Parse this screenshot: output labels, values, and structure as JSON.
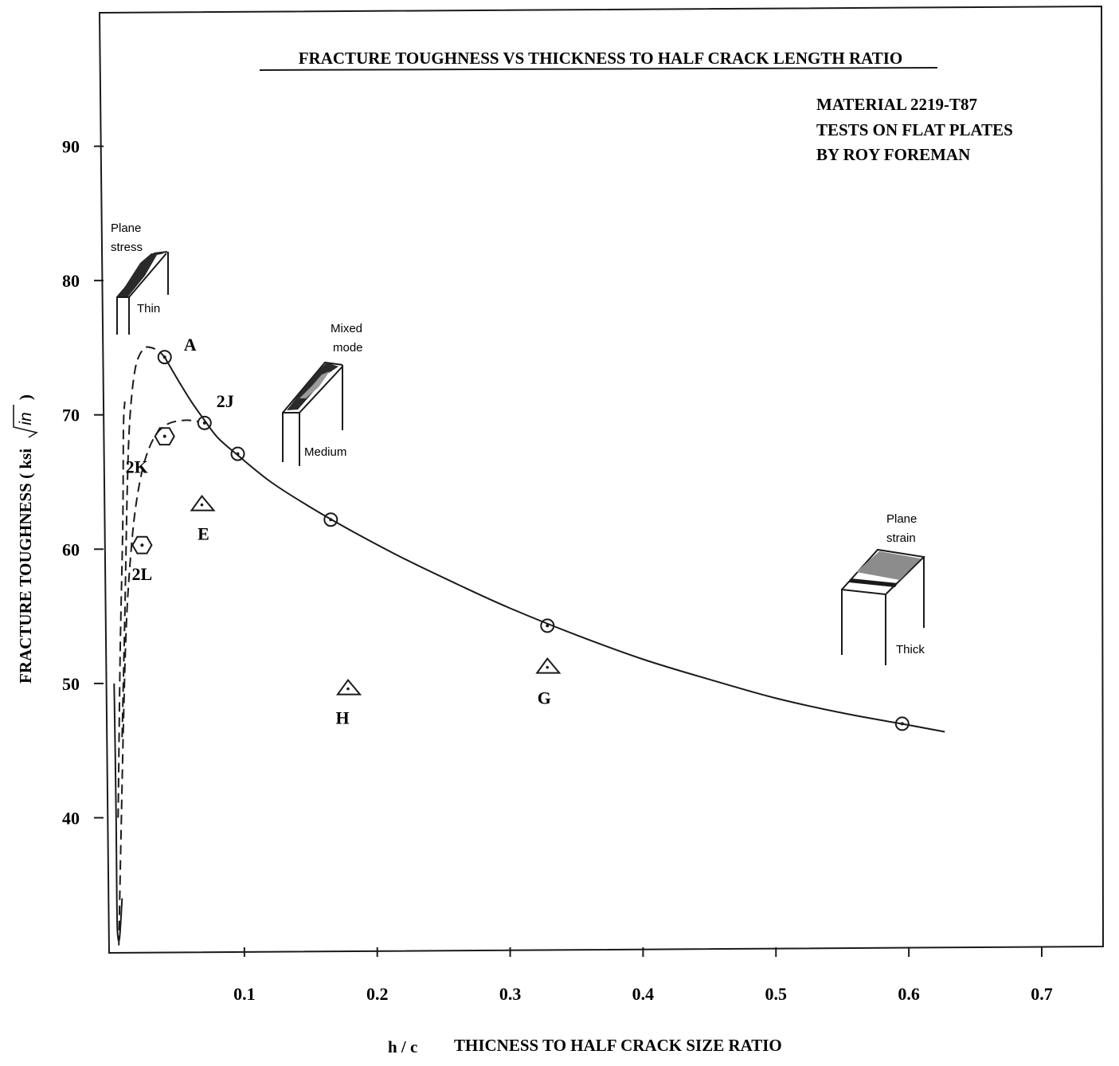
{
  "chart_data": {
    "type": "scatter",
    "title": "FRACTURE TOUGHNESS VS THICKNESS TO HALF CRACK LENGTH RATIO",
    "notes": [
      "MATERIAL  2219-T87",
      "TESTS ON FLAT PLATES",
      "BY ROY FOREMAN"
    ],
    "xlabel_prefix": "h / c",
    "xlabel": "THICNESS TO HALF CRACK SIZE RATIO",
    "ylabel": "FRACTURE TOUGHNESS ( ksi",
    "ylabel_root": "in",
    "ylabel_close": ")",
    "xlim": [
      0,
      0.7
    ],
    "ylim": [
      30,
      100
    ],
    "x_ticks": [
      0.1,
      0.2,
      0.3,
      0.4,
      0.5,
      0.6,
      0.7
    ],
    "x_tick_labels": [
      "0.1",
      "0.2",
      "0.3",
      "0.4",
      "0.5",
      "0.6",
      "0.7"
    ],
    "y_ticks": [
      40,
      50,
      60,
      70,
      80,
      90
    ],
    "y_tick_labels": [
      "40",
      "50",
      "60",
      "70",
      "80",
      "90"
    ],
    "grid": false,
    "series": [
      {
        "marker": "circle",
        "points": [
          {
            "x": 0.04,
            "y": 74.3,
            "label": "A"
          },
          {
            "x": 0.07,
            "y": 69.4,
            "label": "2J"
          },
          {
            "x": 0.095,
            "y": 67.1,
            "label": ""
          },
          {
            "x": 0.165,
            "y": 62.2,
            "label": ""
          },
          {
            "x": 0.328,
            "y": 54.3,
            "label": ""
          },
          {
            "x": 0.595,
            "y": 47.0,
            "label": ""
          }
        ]
      },
      {
        "marker": "hexagon",
        "points": [
          {
            "x": 0.04,
            "y": 68.4,
            "label": "2K"
          },
          {
            "x": 0.023,
            "y": 60.3,
            "label": "2L"
          }
        ]
      },
      {
        "marker": "triangle",
        "points": [
          {
            "x": 0.068,
            "y": 63.3,
            "label": "E"
          },
          {
            "x": 0.178,
            "y": 49.6,
            "label": "H"
          },
          {
            "x": 0.328,
            "y": 51.2,
            "label": "G"
          }
        ]
      }
    ],
    "curves": [
      {
        "style": "solid",
        "points": [
          [
            0.04,
            74.3
          ],
          [
            0.05,
            72.6
          ],
          [
            0.06,
            71.0
          ],
          [
            0.07,
            69.6
          ],
          [
            0.08,
            68.3
          ],
          [
            0.095,
            67.0
          ],
          [
            0.12,
            65.0
          ],
          [
            0.15,
            63.1
          ],
          [
            0.18,
            61.4
          ],
          [
            0.22,
            59.3
          ],
          [
            0.26,
            57.4
          ],
          [
            0.3,
            55.6
          ],
          [
            0.35,
            53.6
          ],
          [
            0.4,
            51.8
          ],
          [
            0.45,
            50.3
          ],
          [
            0.5,
            48.9
          ],
          [
            0.55,
            47.8
          ],
          [
            0.6,
            46.9
          ],
          [
            0.627,
            46.4
          ]
        ]
      },
      {
        "style": "solid",
        "points": [
          [
            0.002,
            50
          ],
          [
            0.0035,
            40
          ],
          [
            0.004,
            34
          ],
          [
            0.0045,
            31.5
          ],
          [
            0.006,
            31
          ],
          [
            0.008,
            34
          ]
        ]
      },
      {
        "style": "dashed",
        "points": [
          [
            0.008,
            46
          ],
          [
            0.01,
            55
          ],
          [
            0.012,
            65
          ],
          [
            0.014,
            70
          ],
          [
            0.018,
            73.5
          ],
          [
            0.024,
            74.9
          ],
          [
            0.03,
            75.0
          ],
          [
            0.036,
            74.7
          ],
          [
            0.04,
            74.3
          ]
        ]
      },
      {
        "style": "dashed",
        "points": [
          [
            0.0055,
            30.5
          ],
          [
            0.007,
            38
          ],
          [
            0.009,
            47
          ],
          [
            0.011,
            54
          ],
          [
            0.014,
            59
          ],
          [
            0.018,
            63
          ],
          [
            0.024,
            66.2
          ],
          [
            0.032,
            68.3
          ],
          [
            0.042,
            69.3
          ],
          [
            0.055,
            69.6
          ],
          [
            0.065,
            69.5
          ]
        ]
      },
      {
        "style": "dashed",
        "points": [
          [
            0.005,
            40
          ],
          [
            0.0065,
            52
          ],
          [
            0.0085,
            62
          ],
          [
            0.009,
            69
          ],
          [
            0.01,
            71
          ]
        ]
      }
    ],
    "sketches": [
      {
        "labels": [
          "Plane",
          "stress"
        ],
        "size": "Thin"
      },
      {
        "labels": [
          "Mixed",
          "mode"
        ],
        "size": "Medium"
      },
      {
        "labels": [
          "Plane",
          "strain"
        ],
        "size": "Thick"
      }
    ]
  }
}
